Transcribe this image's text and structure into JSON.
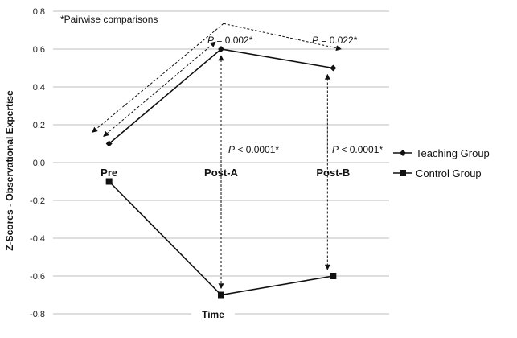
{
  "chart_data": {
    "type": "line",
    "categories": [
      "Pre",
      "Post-A",
      "Post-B"
    ],
    "ylabel": "Z-Scores - Observational Expertise",
    "xlabel": "Time",
    "ylim": [
      -0.8,
      0.8
    ],
    "ytick_step": 0.2,
    "grid": true,
    "legend_position": "right",
    "series": [
      {
        "name": "Teaching Group",
        "marker": "diamond",
        "values": [
          0.1,
          0.6,
          0.5
        ]
      },
      {
        "name": "Control Group",
        "marker": "square",
        "values": [
          -0.1,
          -0.7,
          -0.6
        ]
      }
    ],
    "annotations": {
      "note": "*Pairwise comparisons",
      "p_pre_posta": "P = 0.002*",
      "p_pre_postb": "P = 0.022*",
      "p_group_posta": "P < 0.0001*",
      "p_group_postb": "P < 0.0001*"
    }
  }
}
